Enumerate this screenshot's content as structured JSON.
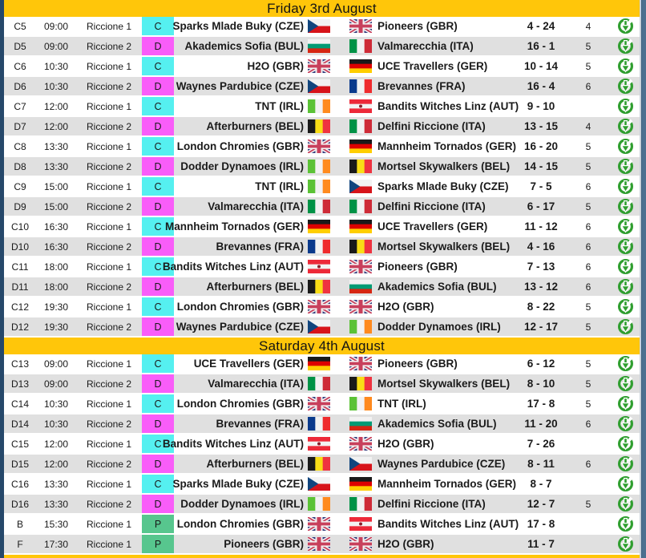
{
  "page": {
    "days": [
      {
        "title": "Friday 3rd August",
        "rows": [
          {
            "code": "C5",
            "time": "09:00",
            "venue": "Riccione 1",
            "division": "C",
            "team1": "Sparks Mlade Buky (CZE)",
            "flag1": "CZE",
            "team2": "Pioneers (GBR)",
            "flag2": "GBR",
            "score": "4 - 24",
            "games": "4"
          },
          {
            "code": "D5",
            "time": "09:00",
            "venue": "Riccione 2",
            "division": "D",
            "team1": "Akademics Sofia (BUL)",
            "flag1": "BUL",
            "team2": "Valmarecchia (ITA)",
            "flag2": "ITA",
            "score": "16 - 1",
            "games": "5"
          },
          {
            "code": "C6",
            "time": "10:30",
            "venue": "Riccione 1",
            "division": "C",
            "team1": "H2O (GBR)",
            "flag1": "GBR",
            "team2": "UCE Travellers (GER)",
            "flag2": "GER",
            "score": "10 - 14",
            "games": "5"
          },
          {
            "code": "D6",
            "time": "10:30",
            "venue": "Riccione 2",
            "division": "D",
            "team1": "Waynes Pardubice (CZE)",
            "flag1": "CZE",
            "team2": "Brevannes (FRA)",
            "flag2": "FRA",
            "score": "16 - 4",
            "games": "6"
          },
          {
            "code": "C7",
            "time": "12:00",
            "venue": "Riccione 1",
            "division": "C",
            "team1": "TNT (IRL)",
            "flag1": "IRL",
            "team2": "Bandits Witches Linz (AUT)",
            "flag2": "AUT",
            "score": "9 - 10",
            "games": ""
          },
          {
            "code": "D7",
            "time": "12:00",
            "venue": "Riccione 2",
            "division": "D",
            "team1": "Afterburners (BEL)",
            "flag1": "BEL",
            "team2": "Delfini Riccione (ITA)",
            "flag2": "ITA",
            "score": "13 - 15",
            "games": "4"
          },
          {
            "code": "C8",
            "time": "13:30",
            "venue": "Riccione 1",
            "division": "C",
            "team1": "London Chromies (GBR)",
            "flag1": "GBR",
            "team2": "Mannheim Tornados (GER)",
            "flag2": "GER",
            "score": "16 - 20",
            "games": "5"
          },
          {
            "code": "D8",
            "time": "13:30",
            "venue": "Riccione 2",
            "division": "D",
            "team1": "Dodder Dynamoes (IRL)",
            "flag1": "IRL",
            "team2": "Mortsel Skywalkers (BEL)",
            "flag2": "BEL",
            "score": "14 - 15",
            "games": "5"
          },
          {
            "code": "C9",
            "time": "15:00",
            "venue": "Riccione 1",
            "division": "C",
            "team1": "TNT (IRL)",
            "flag1": "IRL",
            "team2": "Sparks Mlade Buky (CZE)",
            "flag2": "CZE",
            "score": "7 - 5",
            "games": "6"
          },
          {
            "code": "D9",
            "time": "15:00",
            "venue": "Riccione 2",
            "division": "D",
            "team1": "Valmarecchia (ITA)",
            "flag1": "ITA",
            "team2": "Delfini Riccione (ITA)",
            "flag2": "ITA",
            "score": "6 - 17",
            "games": "5"
          },
          {
            "code": "C10",
            "time": "16:30",
            "venue": "Riccione 1",
            "division": "C",
            "team1": "Mannheim Tornados (GER)",
            "flag1": "GER",
            "team2": "UCE Travellers (GER)",
            "flag2": "GER",
            "score": "11 - 12",
            "games": "6"
          },
          {
            "code": "D10",
            "time": "16:30",
            "venue": "Riccione 2",
            "division": "D",
            "team1": "Brevannes (FRA)",
            "flag1": "FRA",
            "team2": "Mortsel Skywalkers (BEL)",
            "flag2": "BEL",
            "score": "4 - 16",
            "games": "6"
          },
          {
            "code": "C11",
            "time": "18:00",
            "venue": "Riccione 1",
            "division": "C",
            "team1": "Bandits Witches Linz (AUT)",
            "flag1": "AUT",
            "team2": "Pioneers (GBR)",
            "flag2": "GBR",
            "score": "7 - 13",
            "games": "6"
          },
          {
            "code": "D11",
            "time": "18:00",
            "venue": "Riccione 2",
            "division": "D",
            "team1": "Afterburners (BEL)",
            "flag1": "BEL",
            "team2": "Akademics Sofia (BUL)",
            "flag2": "BUL",
            "score": "13 - 12",
            "games": "6"
          },
          {
            "code": "C12",
            "time": "19:30",
            "venue": "Riccione 1",
            "division": "C",
            "team1": "London Chromies (GBR)",
            "flag1": "GBR",
            "team2": "H2O (GBR)",
            "flag2": "GBR",
            "score": "8 - 22",
            "games": "5"
          },
          {
            "code": "D12",
            "time": "19:30",
            "venue": "Riccione 2",
            "division": "D",
            "team1": "Waynes Pardubice (CZE)",
            "flag1": "CZE",
            "team2": "Dodder Dynamoes (IRL)",
            "flag2": "IRL",
            "score": "12 - 17",
            "games": "5"
          }
        ]
      },
      {
        "title": "Saturday 4th August",
        "rows": [
          {
            "code": "C13",
            "time": "09:00",
            "venue": "Riccione 1",
            "division": "C",
            "team1": "UCE Travellers (GER)",
            "flag1": "GER",
            "team2": "Pioneers (GBR)",
            "flag2": "GBR",
            "score": "6 - 12",
            "games": "5"
          },
          {
            "code": "D13",
            "time": "09:00",
            "venue": "Riccione 2",
            "division": "D",
            "team1": "Valmarecchia (ITA)",
            "flag1": "ITA",
            "team2": "Mortsel Skywalkers (BEL)",
            "flag2": "BEL",
            "score": "8 - 10",
            "games": "5"
          },
          {
            "code": "C14",
            "time": "10:30",
            "venue": "Riccione 1",
            "division": "C",
            "team1": "London Chromies (GBR)",
            "flag1": "GBR",
            "team2": "TNT (IRL)",
            "flag2": "IRL",
            "score": "17 - 8",
            "games": "5"
          },
          {
            "code": "D14",
            "time": "10:30",
            "venue": "Riccione 2",
            "division": "D",
            "team1": "Brevannes (FRA)",
            "flag1": "FRA",
            "team2": "Akademics Sofia (BUL)",
            "flag2": "BUL",
            "score": "11 - 20",
            "games": "6"
          },
          {
            "code": "C15",
            "time": "12:00",
            "venue": "Riccione 1",
            "division": "C",
            "team1": "Bandits Witches Linz (AUT)",
            "flag1": "AUT",
            "team2": "H2O (GBR)",
            "flag2": "GBR",
            "score": "7 - 26",
            "games": ""
          },
          {
            "code": "D15",
            "time": "12:00",
            "venue": "Riccione 2",
            "division": "D",
            "team1": "Afterburners (BEL)",
            "flag1": "BEL",
            "team2": "Waynes Pardubice (CZE)",
            "flag2": "CZE",
            "score": "8 - 11",
            "games": "6"
          },
          {
            "code": "C16",
            "time": "13:30",
            "venue": "Riccione 1",
            "division": "C",
            "team1": "Sparks Mlade Buky (CZE)",
            "flag1": "CZE",
            "team2": "Mannheim Tornados (GER)",
            "flag2": "GER",
            "score": "8 - 7",
            "games": ""
          },
          {
            "code": "D16",
            "time": "13:30",
            "venue": "Riccione 2",
            "division": "D",
            "team1": "Dodder Dynamoes (IRL)",
            "flag1": "IRL",
            "team2": "Delfini Riccione (ITA)",
            "flag2": "ITA",
            "score": "12 - 7",
            "games": "5"
          },
          {
            "code": "B",
            "time": "15:30",
            "venue": "Riccione 1",
            "division": "P",
            "team1": "London Chromies (GBR)",
            "flag1": "GBR",
            "team2": "Bandits Witches Linz (AUT)",
            "flag2": "AUT",
            "score": "17 - 8",
            "games": ""
          },
          {
            "code": "F",
            "time": "17:30",
            "venue": "Riccione 1",
            "division": "P",
            "team1": "Pioneers (GBR)",
            "flag1": "GBR",
            "team2": "H2O (GBR)",
            "flag2": "GBR",
            "score": "11 - 7",
            "games": ""
          }
        ]
      }
    ]
  },
  "colors": {
    "header_bg": "#FFC60A",
    "division_C": "#55F0F0",
    "division_D": "#F95DF9",
    "division_P": "#57C68E",
    "row_alt": "#E0E0E0",
    "download_green": "#2F9E2F",
    "edge_blue": "#4C7090",
    "edge_navy": "#26486A"
  },
  "icons": {
    "download": "download-icon"
  },
  "flag_defs": {
    "BUL": {
      "dir": "h",
      "stripes": [
        "#F2F2F2",
        "#009B74",
        "#D62612"
      ]
    },
    "ITA": {
      "dir": "v",
      "stripes": [
        "#009246",
        "#F2F2F2",
        "#CE2B37"
      ]
    },
    "GER": {
      "dir": "h",
      "stripes": [
        "#1A1A1A",
        "#DD0000",
        "#FFCE00"
      ]
    },
    "FRA": {
      "dir": "v",
      "stripes": [
        "#0A3A8C",
        "#F2F2F2",
        "#EF2B2D"
      ]
    },
    "IRL": {
      "dir": "v",
      "stripes": [
        "#5BC236",
        "#F2F2F2",
        "#FF8A1E"
      ]
    },
    "BEL": {
      "dir": "v",
      "stripes": [
        "#1A1A1A",
        "#F9DD16",
        "#EF3340"
      ]
    },
    "AUT": {
      "dir": "h",
      "stripes": [
        "#ED2939",
        "#F2F2F2",
        "#ED2939"
      ],
      "emblem": "#8A1E2A"
    },
    "CZE": {
      "special": "cze",
      "white": "#F2F2F2",
      "red": "#D7141A",
      "blue": "#11457E"
    },
    "GBR": {
      "special": "gbr",
      "blue": "#333C7E",
      "red": "#C8405C",
      "white": "#F2F2F2"
    }
  }
}
